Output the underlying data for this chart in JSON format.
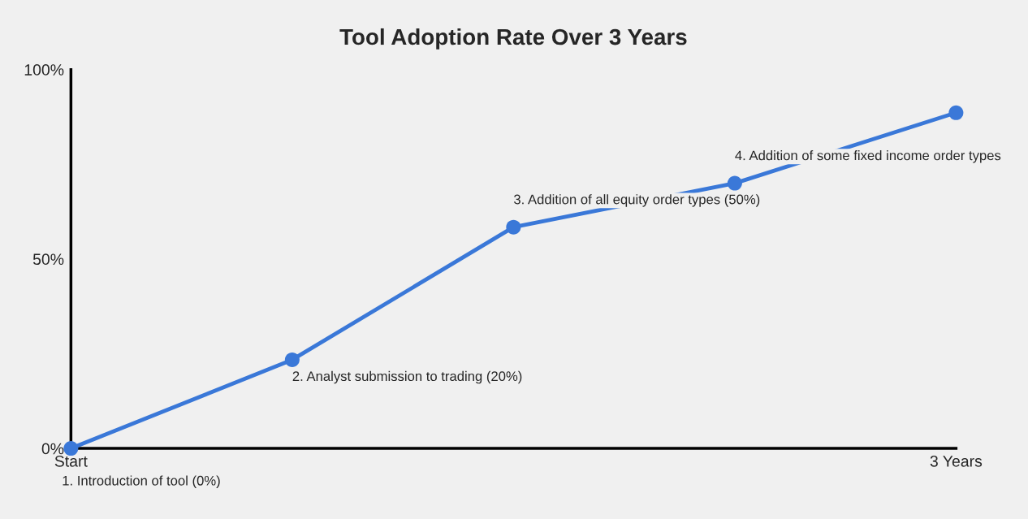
{
  "chart_data": {
    "type": "line",
    "title": "Tool Adoption Rate Over 3 Years",
    "categories": [
      "Start",
      null,
      null,
      null,
      "3 Years"
    ],
    "series": [
      {
        "color": "#3a78d8",
        "values": [
          0,
          23.4,
          58.4,
          70.0,
          88.6
        ]
      }
    ],
    "annotations": [
      "1. Introduction of tool (0%)",
      "2. Analyst submission to trading (20%)",
      "3. Addition of all equity order types (50%)",
      "4. Addition of some fixed income order types"
    ],
    "ylim": [
      0,
      100
    ],
    "yticks": [
      {
        "value": 0,
        "label": "0%"
      },
      {
        "value": 50,
        "label": "50%"
      },
      {
        "value": 100,
        "label": "100%"
      }
    ],
    "marker": "circle",
    "line_style": "solid",
    "grid": false,
    "legend": false
  }
}
